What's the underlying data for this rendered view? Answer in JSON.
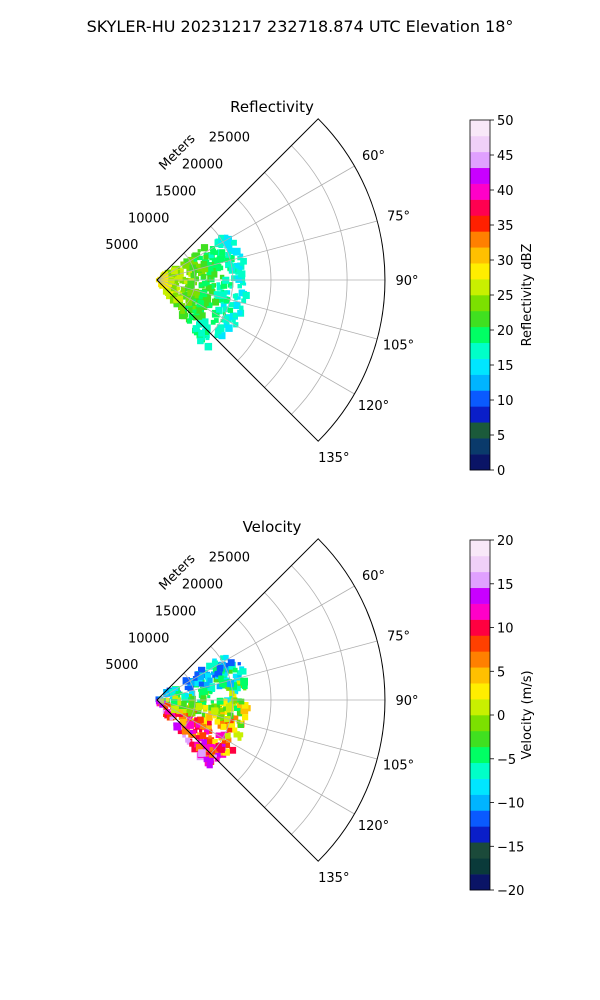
{
  "figure": {
    "suptitle": "SKYLER-HU  20231217  232718.874 UTC Elevation 18°"
  },
  "chart_data": [
    {
      "type": "polar-sector-ppi",
      "title": "Reflectivity",
      "radial_label": "Meters",
      "azimuth_range_deg": [
        45,
        135
      ],
      "azimuth_ticks": [
        "60°",
        "75°",
        "90°",
        "105°",
        "120°",
        "135°"
      ],
      "range_ticks": [
        "5000",
        "10000",
        "15000",
        "20000",
        "25000"
      ],
      "range_max_m": 30000,
      "data_extent_m": 12000,
      "grid": true,
      "colorbar": {
        "label": "Reflectivity dBZ",
        "vmin": 0,
        "vmax": 50,
        "ticks": [
          "0",
          "5",
          "10",
          "15",
          "20",
          "25",
          "30",
          "35",
          "40",
          "45",
          "50"
        ],
        "colors": [
          "#0a1466",
          "#0a3a6b",
          "#1b5a3a",
          "#0a1ec8",
          "#0a5aff",
          "#00b4ff",
          "#00e6ff",
          "#00ffc8",
          "#00ff64",
          "#40e020",
          "#7ce000",
          "#c8f000",
          "#ffee00",
          "#ffc000",
          "#ff8000",
          "#ff2000",
          "#ff0050",
          "#ff00c8",
          "#c800ff",
          "#e0a0ff",
          "#f0d0f8",
          "#f8e8f8"
        ]
      }
    },
    {
      "type": "polar-sector-ppi",
      "title": "Velocity",
      "radial_label": "Meters",
      "azimuth_range_deg": [
        45,
        135
      ],
      "azimuth_ticks": [
        "60°",
        "75°",
        "90°",
        "105°",
        "120°",
        "135°"
      ],
      "range_ticks": [
        "5000",
        "10000",
        "15000",
        "20000",
        "25000"
      ],
      "range_max_m": 30000,
      "data_extent_m": 12000,
      "grid": true,
      "colorbar": {
        "label": "Velocity (m/s)",
        "vmin": -20,
        "vmax": 20,
        "ticks": [
          "−20",
          "−15",
          "−10",
          "−5",
          "0",
          "5",
          "10",
          "15",
          "20"
        ],
        "colors": [
          "#0a1466",
          "#0a3a3a",
          "#1b4a3a",
          "#0a1ec8",
          "#0a5aff",
          "#00b4ff",
          "#00e6ff",
          "#00ffc8",
          "#00ff64",
          "#40e020",
          "#7ce000",
          "#c8f000",
          "#ffee00",
          "#ffc000",
          "#ff8000",
          "#ff4000",
          "#ff0040",
          "#ff00c8",
          "#c800ff",
          "#e0a0ff",
          "#f0d0f8",
          "#f8e8f8"
        ]
      }
    }
  ]
}
